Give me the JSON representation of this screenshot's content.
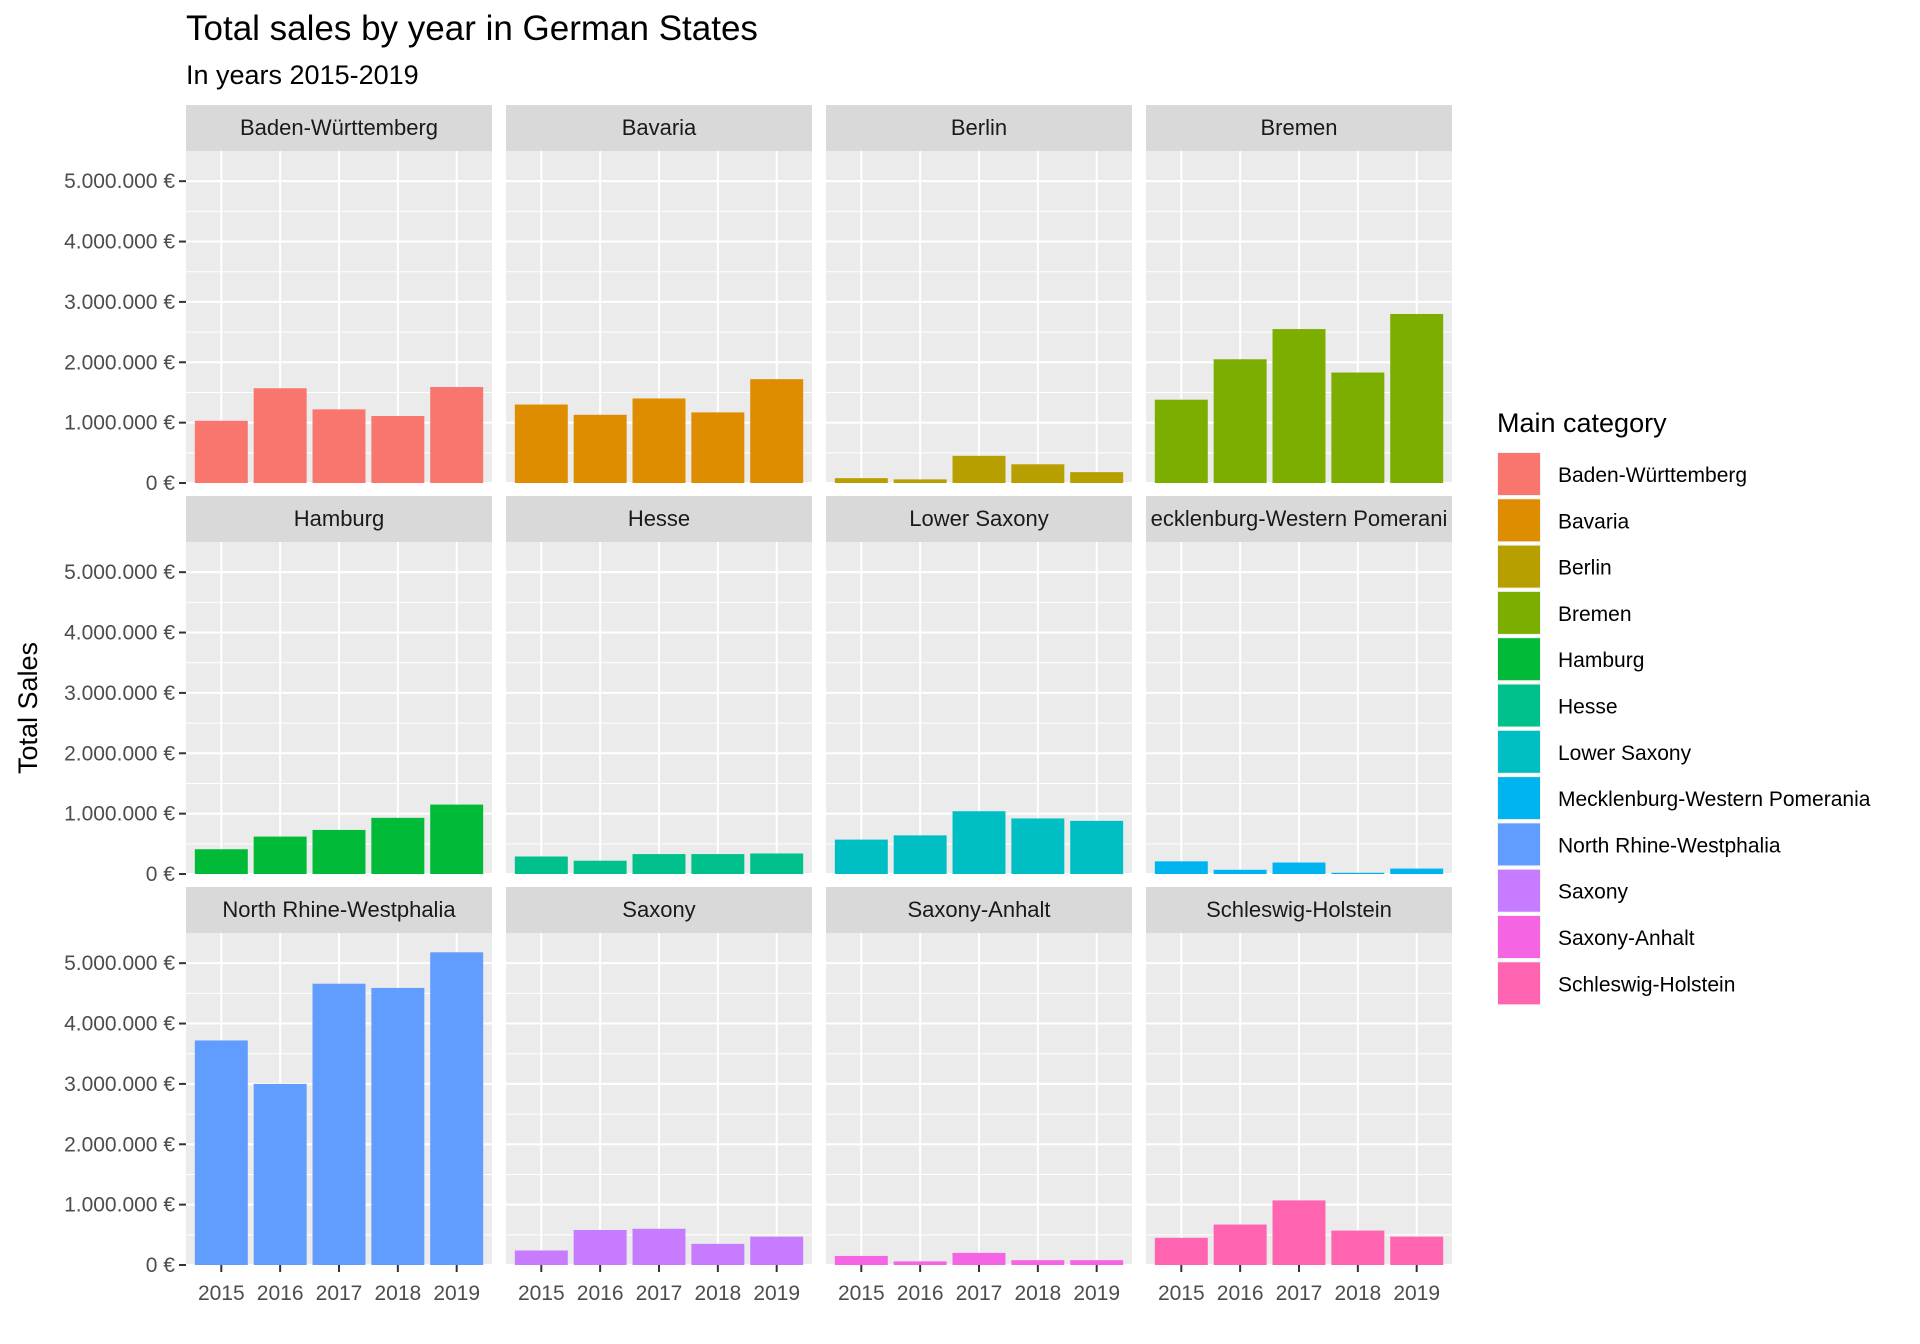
{
  "chart_data": {
    "type": "bar",
    "title": "Total sales by year in German States",
    "subtitle": "In years 2015-2019",
    "ylabel": "Total Sales",
    "xlabel": "",
    "ylim": [
      0,
      5500000
    ],
    "y_ticks": [
      {
        "value": 0,
        "label": "0 €"
      },
      {
        "value": 1000000,
        "label": "1.000.000 €"
      },
      {
        "value": 2000000,
        "label": "2.000.000 €"
      },
      {
        "value": 3000000,
        "label": "3.000.000 €"
      },
      {
        "value": 4000000,
        "label": "4.000.000 €"
      },
      {
        "value": 5000000,
        "label": "5.000.000 €"
      }
    ],
    "categories": [
      "2015",
      "2016",
      "2017",
      "2018",
      "2019"
    ],
    "grid": true,
    "facet_layout": "4 columns x 3 rows, shared axes",
    "legend": {
      "title": "Main category",
      "position": "right"
    },
    "series": [
      {
        "name": "Baden-Württemberg",
        "strip_label": "Baden-Württemberg",
        "color": "#F8766D",
        "values": [
          1030000,
          1570000,
          1220000,
          1110000,
          1590000
        ]
      },
      {
        "name": "Bavaria",
        "strip_label": "Bavaria",
        "color": "#DE8C00",
        "values": [
          1300000,
          1130000,
          1400000,
          1170000,
          1720000
        ]
      },
      {
        "name": "Berlin",
        "strip_label": "Berlin",
        "color": "#B79F00",
        "values": [
          80000,
          60000,
          450000,
          310000,
          180000
        ]
      },
      {
        "name": "Bremen",
        "strip_label": "Bremen",
        "color": "#7CAE00",
        "values": [
          1380000,
          2050000,
          2550000,
          1830000,
          2800000
        ]
      },
      {
        "name": "Hamburg",
        "strip_label": "Hamburg",
        "color": "#00BA38",
        "values": [
          410000,
          620000,
          730000,
          930000,
          1150000
        ]
      },
      {
        "name": "Hesse",
        "strip_label": "Hesse",
        "color": "#00C08B",
        "values": [
          290000,
          220000,
          330000,
          330000,
          340000
        ]
      },
      {
        "name": "Lower Saxony",
        "strip_label": "Lower Saxony",
        "color": "#00BFC4",
        "values": [
          570000,
          640000,
          1040000,
          920000,
          880000
        ]
      },
      {
        "name": "Mecklenburg-Western Pomerania",
        "strip_label": "ecklenburg-Western Pomerani",
        "color": "#00B4F0",
        "values": [
          210000,
          70000,
          190000,
          20000,
          90000
        ]
      },
      {
        "name": "North Rhine-Westphalia",
        "strip_label": "North Rhine-Westphalia",
        "color": "#619CFF",
        "values": [
          3720000,
          3000000,
          4660000,
          4590000,
          5180000
        ]
      },
      {
        "name": "Saxony",
        "strip_label": "Saxony",
        "color": "#C77CFF",
        "values": [
          240000,
          580000,
          600000,
          350000,
          470000
        ]
      },
      {
        "name": "Saxony-Anhalt",
        "strip_label": "Saxony-Anhalt",
        "color": "#F564E3",
        "values": [
          150000,
          60000,
          200000,
          80000,
          80000
        ]
      },
      {
        "name": "Schleswig-Holstein",
        "strip_label": "Schleswig-Holstein",
        "color": "#FF64B0",
        "values": [
          450000,
          670000,
          1070000,
          570000,
          470000
        ]
      }
    ]
  }
}
